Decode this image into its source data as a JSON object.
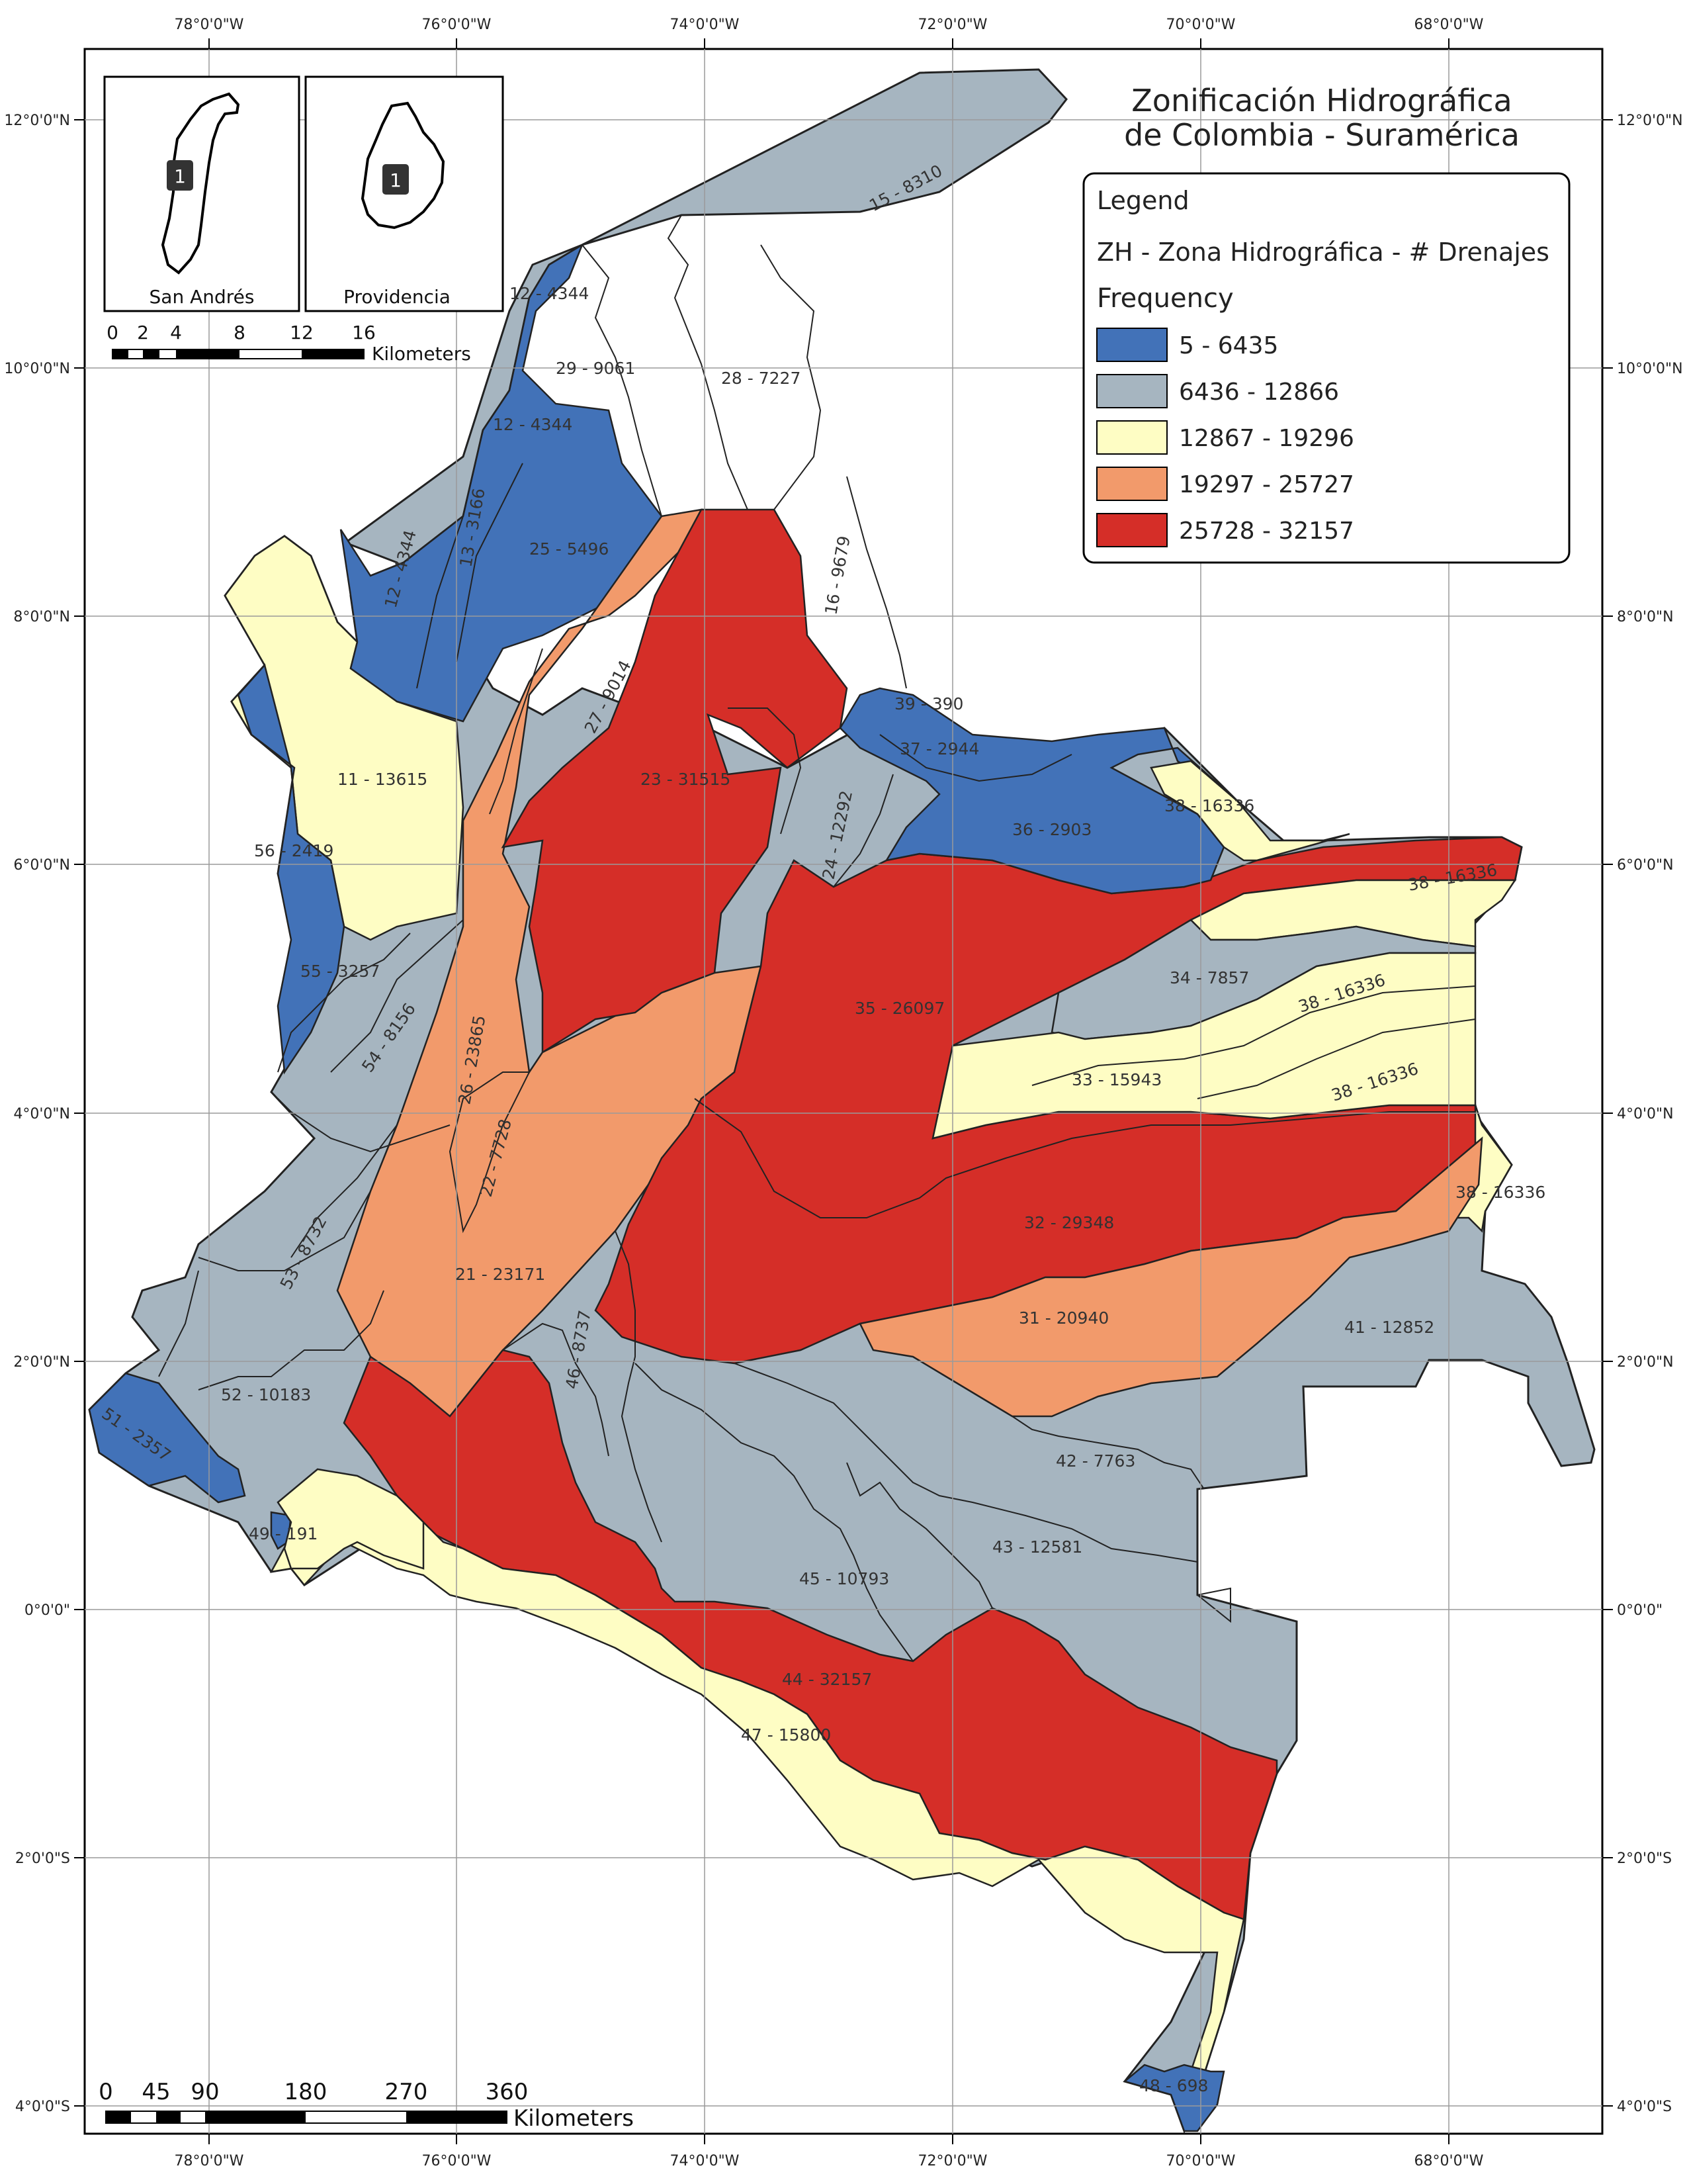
{
  "title": {
    "line1": "Zonificación Hidrográfica",
    "line2": "de Colombia - Suramérica"
  },
  "legend": {
    "heading": "Legend",
    "layer": "ZH - Zona Hidrográfica - # Drenajes",
    "field": "Frequency",
    "classes": [
      {
        "label": "5 - 6435",
        "color": "#4272b8"
      },
      {
        "label": "6436 - 12866",
        "color": "#a6b5c0"
      },
      {
        "label": "12867 - 19296",
        "color": "#fefdc4"
      },
      {
        "label": "19297 - 25727",
        "color": "#f29a6b"
      },
      {
        "label": "25728 - 32157",
        "color": "#d52e28"
      }
    ]
  },
  "graticule": {
    "top_lon": [
      "78°0'0\"W",
      "76°0'0\"W",
      "74°0'0\"W",
      "72°0'0\"W",
      "70°0'0\"W",
      "68°0'0\"W"
    ],
    "bottom_lon": [
      "78°0'0\"W",
      "76°0'0\"W",
      "74°0'0\"W",
      "72°0'0\"W",
      "70°0'0\"W",
      "68°0'0\"W"
    ],
    "left_lat": [
      "12°0'0\"N",
      "10°0'0\"N",
      "8°0'0\"N",
      "6°0'0\"N",
      "4°0'0\"N",
      "2°0'0\"N",
      "0°0'0\"",
      "2°0'0\"S",
      "4°0'0\"S"
    ],
    "right_lat": [
      "12°0'0\"N",
      "10°0'0\"N",
      "8°0'0\"N",
      "6°0'0\"N",
      "4°0'0\"N",
      "2°0'0\"N",
      "0°0'0\"",
      "2°0'0\"S",
      "4°0'0\"S"
    ]
  },
  "zone_labels": [
    "15 - 8310",
    "12 - 4344",
    "29 - 9061",
    "28 - 7227",
    "12 - 4344",
    "12 - 4344",
    "13 - 3166",
    "25 - 5496",
    "16 - 9679",
    "39 - 390",
    "37 - 2944",
    "27 - 9014",
    "23 - 31515",
    "11 - 13615",
    "24 - 12292",
    "36 - 2903",
    "38 - 16336",
    "56 - 2419",
    "38 - 16336",
    "55 - 3257",
    "35 - 26097",
    "34 - 7857",
    "38 - 16336",
    "54 - 8156",
    "26 - 23865",
    "33 - 15943",
    "38 - 16336",
    "22 - 7728",
    "38 - 16336",
    "53 - 8732",
    "32 - 29348",
    "21 - 23171",
    "31 - 20940",
    "41 - 12852",
    "52 - 10183",
    "46 - 8737",
    "51 - 2357",
    "42 - 7763",
    "49 - 191",
    "43 - 12581",
    "45 - 10793",
    "44 - 32157",
    "47 - 15800",
    "48 - 698"
  ],
  "insets": [
    {
      "name": "San Andrés",
      "badge": "1"
    },
    {
      "name": "Providencia",
      "badge": "1"
    }
  ],
  "inset_scale": {
    "ticks": [
      "0",
      "2",
      "4",
      "8",
      "12",
      "16"
    ],
    "unit": "Kilometers"
  },
  "main_scale": {
    "ticks": [
      "0",
      "45",
      "90",
      "180",
      "270",
      "360"
    ],
    "unit": "Kilometers"
  }
}
